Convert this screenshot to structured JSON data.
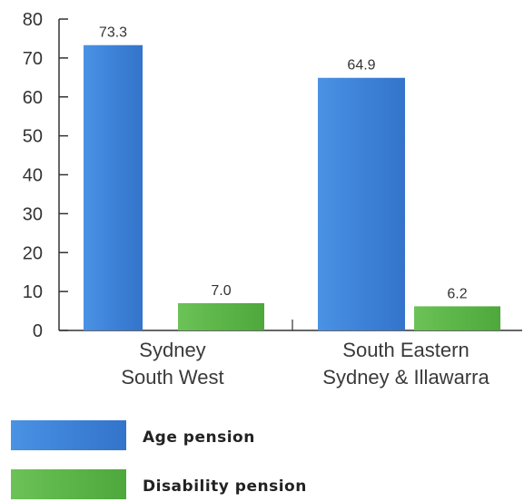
{
  "chart_data": {
    "type": "bar",
    "categories": [
      [
        "Sydney",
        "South West"
      ],
      [
        "South Eastern",
        "Sydney & Illawarra"
      ]
    ],
    "series": [
      {
        "name": "Age pension",
        "values": [
          73.3,
          64.9
        ],
        "labels": [
          "73.3",
          "64.9"
        ],
        "color": "#3f86dc"
      },
      {
        "name": "Disability pension",
        "values": [
          7.0,
          6.2
        ],
        "labels": [
          "7.0",
          "6.2"
        ],
        "color": "#5db64a"
      }
    ],
    "ylim": [
      0,
      80
    ],
    "yticks": [
      "0",
      "10",
      "20",
      "30",
      "40",
      "50",
      "60",
      "70",
      "80"
    ],
    "grid": false,
    "legend_position": "bottom-left",
    "title": "",
    "xlabel": "",
    "ylabel": ""
  }
}
